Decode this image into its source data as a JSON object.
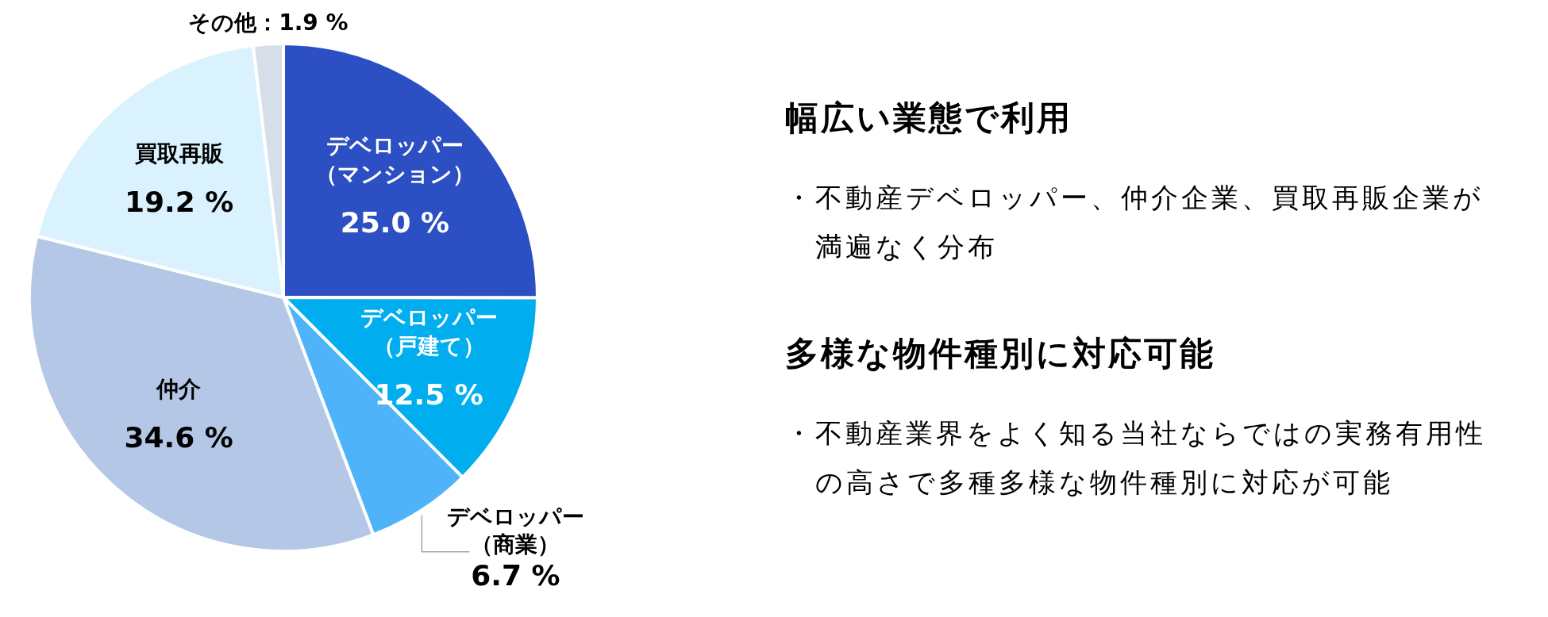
{
  "chart_data": [
    {
      "type": "pie",
      "categories": [
        "デベロッパー（マンション）",
        "デベロッパー（戸建て）",
        "デベロッパー（商業）",
        "仲介",
        "買取再販",
        "その他"
      ],
      "values": [
        25.0,
        12.5,
        6.7,
        34.6,
        19.2,
        1.9
      ],
      "colors": [
        "#2c4fc4",
        "#00aeef",
        "#4eb3f8",
        "#b4c7e7",
        "#d9f2fd",
        "#d6dfe9"
      ],
      "value_labels": [
        "25.0 %",
        "12.5 %",
        "6.7 %",
        "34.6 %",
        "19.2 %",
        "1.9 %"
      ]
    },
    {
      "type": "other",
      "title": "幅広い業態で利用",
      "annotations": [
        "・不動産デベロッパー、仲介企業、買取再販企業が満遍なく分布"
      ]
    },
    {
      "type": "other",
      "title": "多様な物件種別に対応可能",
      "annotations": [
        "・不動産業界をよく知る当社ならではの実務有用性の高さで多種多様な物件種別に対応が可能"
      ]
    }
  ]
}
